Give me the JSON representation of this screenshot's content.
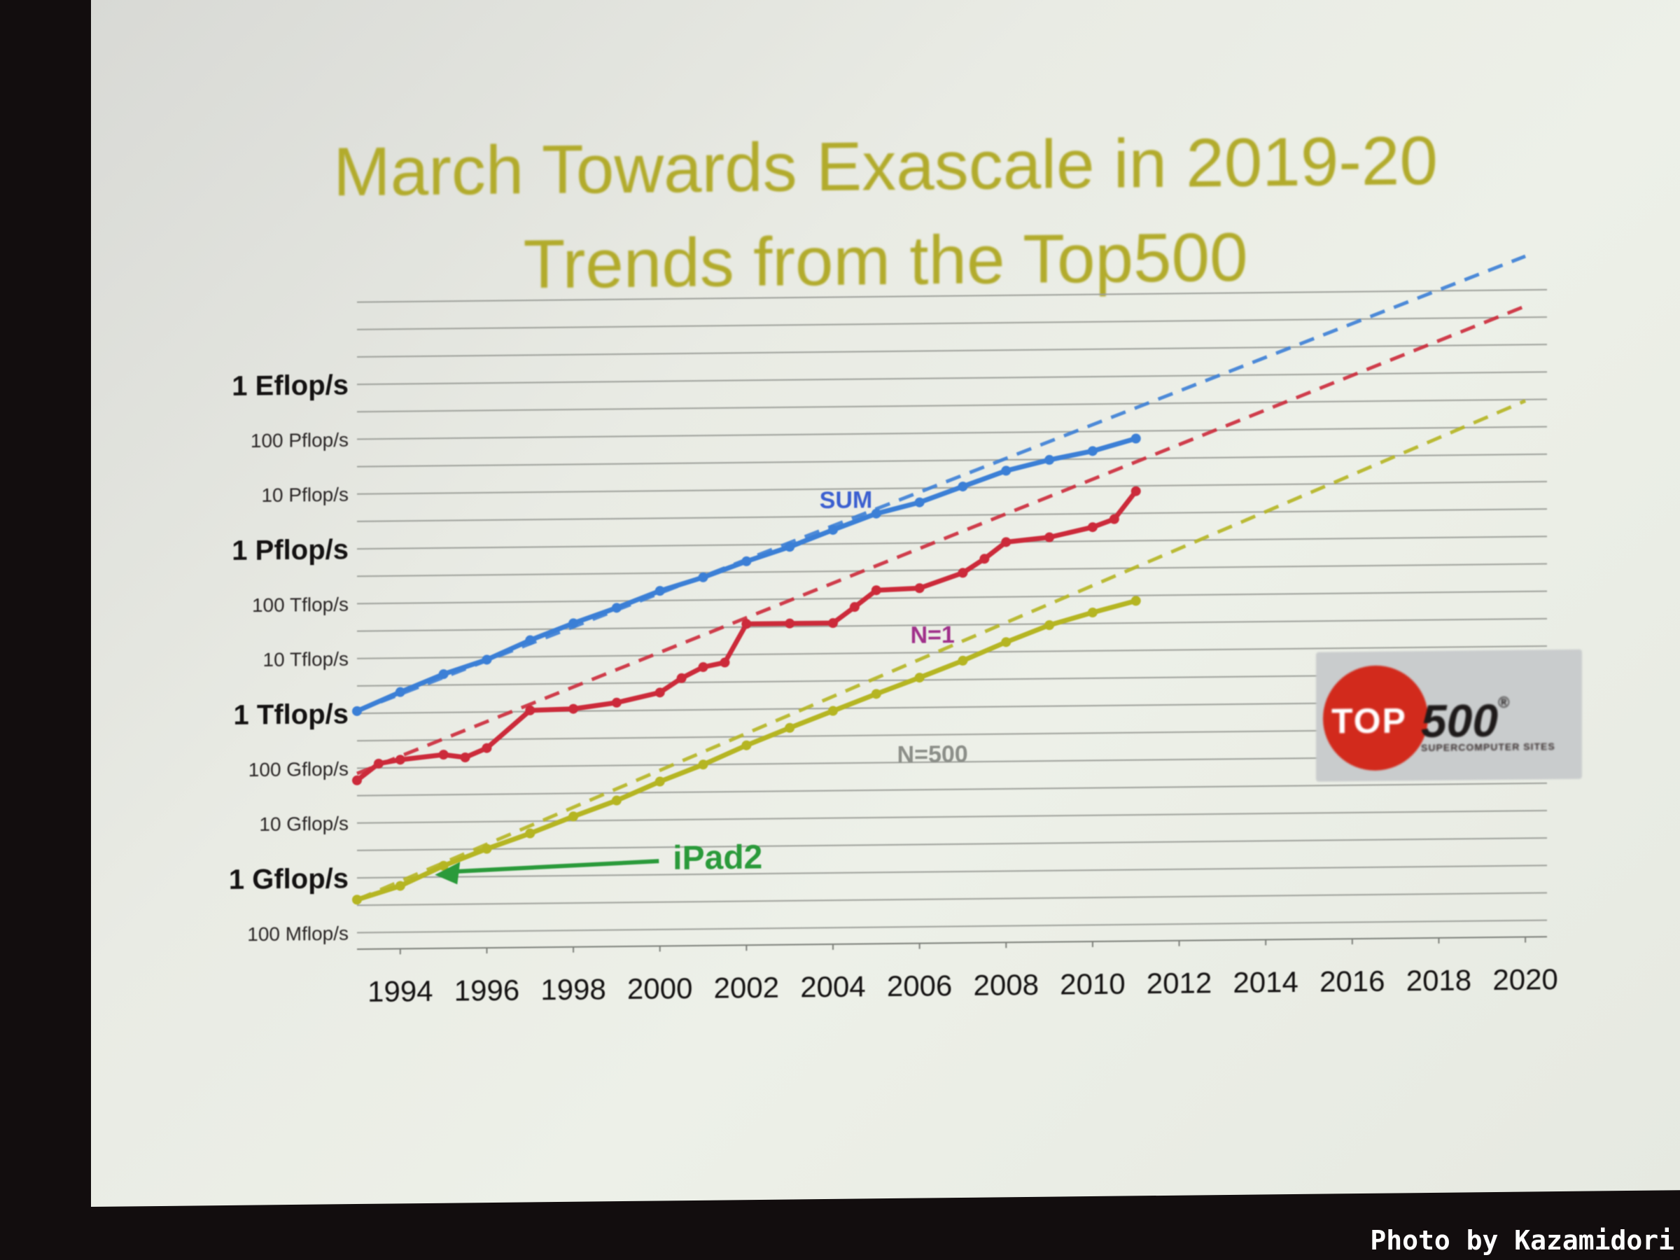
{
  "chart_data": {
    "type": "line",
    "title": "March Towards Exascale in 2019-20",
    "subtitle": "Trends from the Top500",
    "xlim": [
      1993,
      2020.5
    ],
    "x_ticks": [
      1994,
      1996,
      1998,
      2000,
      2002,
      2004,
      2006,
      2008,
      2010,
      2012,
      2014,
      2016,
      2018,
      2020
    ],
    "y_scale": "log",
    "y_ticks": [
      {
        "label": "100 Mflop/s",
        "value": 100000000.0,
        "major": false
      },
      {
        "label": "1 Gflop/s",
        "value": 1000000000.0,
        "major": true
      },
      {
        "label": "10 Gflop/s",
        "value": 10000000000.0,
        "major": false
      },
      {
        "label": "100 Gflop/s",
        "value": 100000000000.0,
        "major": false
      },
      {
        "label": "1 Tflop/s",
        "value": 1000000000000.0,
        "major": true
      },
      {
        "label": "10 Tflop/s",
        "value": 10000000000000.0,
        "major": false
      },
      {
        "label": "100 Tflop/s",
        "value": 100000000000000.0,
        "major": false
      },
      {
        "label": "1 Pflop/s",
        "value": 1000000000000000.0,
        "major": true
      },
      {
        "label": "10 Pflop/s",
        "value": 1e+16,
        "major": false
      },
      {
        "label": "100 Pflop/s",
        "value": 1e+17,
        "major": false
      },
      {
        "label": "1 Eflop/s",
        "value": 1e+18,
        "major": true
      }
    ],
    "ylim": [
      50000000.0,
      5e+19
    ],
    "grid": true,
    "series": [
      {
        "name": "SUM",
        "color": "#3b7fd6",
        "x": [
          1993,
          1994,
          1995,
          1996,
          1997,
          1998,
          1999,
          2000,
          2001,
          2002,
          2003,
          2004,
          2005,
          2006,
          2007,
          2008,
          2009,
          2010,
          2011
        ],
        "values": [
          1100000000000.0,
          2400000000000.0,
          5000000000000.0,
          9000000000000.0,
          20000000000000.0,
          40000000000000.0,
          75000000000000.0,
          150000000000000.0,
          260000000000000.0,
          500000000000000.0,
          900000000000000.0,
          1800000000000000.0,
          3500000000000000.0,
          5500000000000000.0,
          1.05e+16,
          2e+16,
          3.1e+16,
          4.4e+16,
          7.3e+16
        ],
        "trend": {
          "x": [
            1993,
            2020
          ],
          "values": [
            1100000000000.0,
            1.3e+20
          ]
        }
      },
      {
        "name": "N=1",
        "color": "#cc2a3a",
        "x": [
          1993,
          1993.5,
          1994,
          1995,
          1995.5,
          1996,
          1997,
          1998,
          1999,
          2000,
          2000.5,
          2001,
          2001.5,
          2002,
          2003,
          2004,
          2004.5,
          2005,
          2006,
          2007,
          2007.5,
          2008,
          2009,
          2010,
          2010.5,
          2011
        ],
        "values": [
          60000000000.0,
          120000000000.0,
          140000000000.0,
          170000000000.0,
          150000000000.0,
          220000000000.0,
          1050000000000.0,
          1100000000000.0,
          1400000000000.0,
          2100000000000.0,
          3800000000000.0,
          6000000000000.0,
          7200000000000.0,
          36000000000000.0,
          36000000000000.0,
          36000000000000.0,
          70000000000000.0,
          140000000000000.0,
          150000000000000.0,
          280000000000000.0,
          500000000000000.0,
          1000000000000000.0,
          1200000000000000.0,
          1800000000000000.0,
          2500000000000000.0,
          8000000000000000.0
        ],
        "trend": {
          "x": [
            1993,
            2020
          ],
          "values": [
            80000000000.0,
            1.6e+19
          ]
        }
      },
      {
        "name": "N=500",
        "color": "#b5b522",
        "x": [
          1993,
          1994,
          1995,
          1996,
          1997,
          1998,
          1999,
          2000,
          2001,
          2002,
          2003,
          2004,
          2005,
          2006,
          2007,
          2008,
          2009,
          2010,
          2011
        ],
        "values": [
          400000000.0,
          700000000.0,
          1600000000.0,
          3200000000.0,
          6000000000.0,
          12000000000.0,
          23000000000.0,
          50000000000.0,
          100000000000.0,
          220000000000.0,
          450000000000.0,
          900000000000.0,
          1800000000000.0,
          3500000000000.0,
          7000000000000.0,
          15000000000000.0,
          30000000000000.0,
          50000000000000.0,
          80000000000000.0
        ],
        "trend": {
          "x": [
            1993,
            2020
          ],
          "values": [
            400000000.0,
            3e+17
          ]
        }
      }
    ],
    "annotations": [
      {
        "text": "iPad2",
        "color": "#2a9a3a",
        "arrow_to": {
          "x": 1994.8,
          "y": 1100000000.0
        },
        "label_at": {
          "x": 2000.3,
          "y": 1400000000.0
        }
      }
    ]
  },
  "logo": {
    "top": "TOP",
    "num": "500",
    "registered": "®",
    "tagline": "SUPERCOMPUTER SITES"
  },
  "photo_credit": "Photo by Kazamidori"
}
